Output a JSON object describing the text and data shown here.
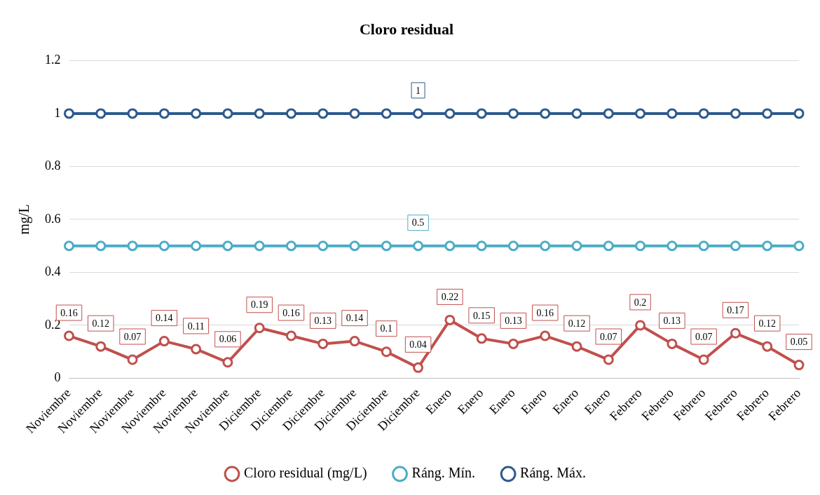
{
  "chart_data": {
    "type": "line",
    "title": "Cloro residual",
    "ylabel": "mg/L",
    "categories": [
      "Noviembre",
      "Noviembre",
      "Noviembre",
      "Noviembre",
      "Noviembre",
      "Noviembre",
      "Diciembre",
      "Diciembre",
      "Diciembre",
      "Diciembre",
      "Diciembre",
      "Diciembre",
      "Enero",
      "Enero",
      "Enero",
      "Enero",
      "Enero",
      "Enero",
      "Febrero",
      "Febrero",
      "Febrero",
      "Febrero",
      "Febrero",
      "Febrero"
    ],
    "series": [
      {
        "name": "Cloro residual (mg/L)",
        "color": "#c0504d",
        "values": [
          0.16,
          0.12,
          0.07,
          0.14,
          0.11,
          0.06,
          0.19,
          0.16,
          0.13,
          0.14,
          0.1,
          0.04,
          0.22,
          0.15,
          0.13,
          0.16,
          0.12,
          0.07,
          0.2,
          0.13,
          0.07,
          0.17,
          0.12,
          0.05
        ],
        "value_labels": [
          "0.16",
          "0.12",
          "0.07",
          "0.14",
          "0.11",
          "0.06",
          "0.19",
          "0.16",
          "0.13",
          "0.14",
          "0.1",
          "0.04",
          "0.22",
          "0.15",
          "0.13",
          "0.16",
          "0.12",
          "0.07",
          "0.2",
          "0.13",
          "0.07",
          "0.17",
          "0.12",
          "0.05"
        ]
      },
      {
        "name": "Ráng. Mín.",
        "color": "#4bacc6",
        "values": [
          0.5,
          0.5,
          0.5,
          0.5,
          0.5,
          0.5,
          0.5,
          0.5,
          0.5,
          0.5,
          0.5,
          0.5,
          0.5,
          0.5,
          0.5,
          0.5,
          0.5,
          0.5,
          0.5,
          0.5,
          0.5,
          0.5,
          0.5,
          0.5
        ],
        "value_labels": [
          null,
          null,
          null,
          null,
          null,
          null,
          null,
          null,
          null,
          null,
          null,
          "0.5",
          null,
          null,
          null,
          null,
          null,
          null,
          null,
          null,
          null,
          null,
          null,
          null
        ]
      },
      {
        "name": "Ráng. Máx.",
        "color": "#2e5a8c",
        "values": [
          1,
          1,
          1,
          1,
          1,
          1,
          1,
          1,
          1,
          1,
          1,
          1,
          1,
          1,
          1,
          1,
          1,
          1,
          1,
          1,
          1,
          1,
          1,
          1
        ],
        "value_labels": [
          null,
          null,
          null,
          null,
          null,
          null,
          null,
          null,
          null,
          null,
          null,
          "1",
          null,
          null,
          null,
          null,
          null,
          null,
          null,
          null,
          null,
          null,
          null,
          null
        ]
      }
    ],
    "ylim": [
      0,
      1.2
    ],
    "yticks": [
      0,
      0.2,
      0.4,
      0.6,
      0.8,
      1,
      1.2
    ],
    "grid": "y",
    "legend": "bottom",
    "marker": "circle",
    "line_style": "solid"
  }
}
